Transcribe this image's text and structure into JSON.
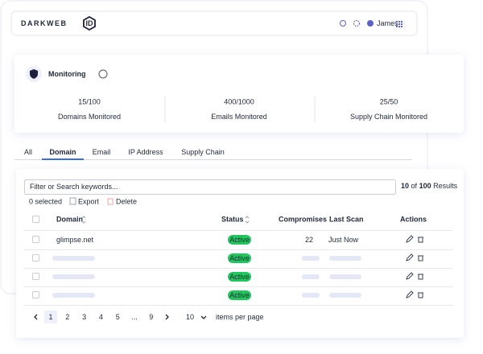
{
  "header": {
    "logo": "DARKWEB",
    "logo_badge": "ID",
    "user": "James"
  },
  "summary": {
    "title": "Monitoring",
    "stats": [
      {
        "value": "15/100",
        "label": "Domains Monitored"
      },
      {
        "value": "400/1000",
        "label": "Emails Monitored"
      },
      {
        "value": "25/50",
        "label": "Supply Chain Monitored"
      }
    ]
  },
  "tabs": {
    "items": [
      "All",
      "Domain",
      "Email",
      "IP Address",
      "Supply Chain"
    ],
    "active": 1
  },
  "table": {
    "search_placeholder": "Filter or Search keywords...",
    "results": {
      "shown": 10,
      "of": "of",
      "total": 100,
      "label": "Results"
    },
    "toolbar": {
      "selected": "0 selected",
      "export": "Export",
      "delete": "Delete"
    },
    "columns": [
      "Domain",
      "Status",
      "Compromises",
      "Last Scan",
      "Actions"
    ],
    "rows": [
      {
        "domain": "glimpse.net",
        "status": "Active",
        "compromises": 22,
        "last_scan": "Just Now"
      },
      {
        "status": "Active"
      },
      {
        "status": "Active"
      },
      {
        "status": "Active"
      }
    ]
  },
  "pagination": {
    "pages": [
      1,
      2,
      3,
      4,
      5,
      "...",
      9
    ],
    "current": 0,
    "per_page": 10,
    "per_page_label": "items per page"
  }
}
